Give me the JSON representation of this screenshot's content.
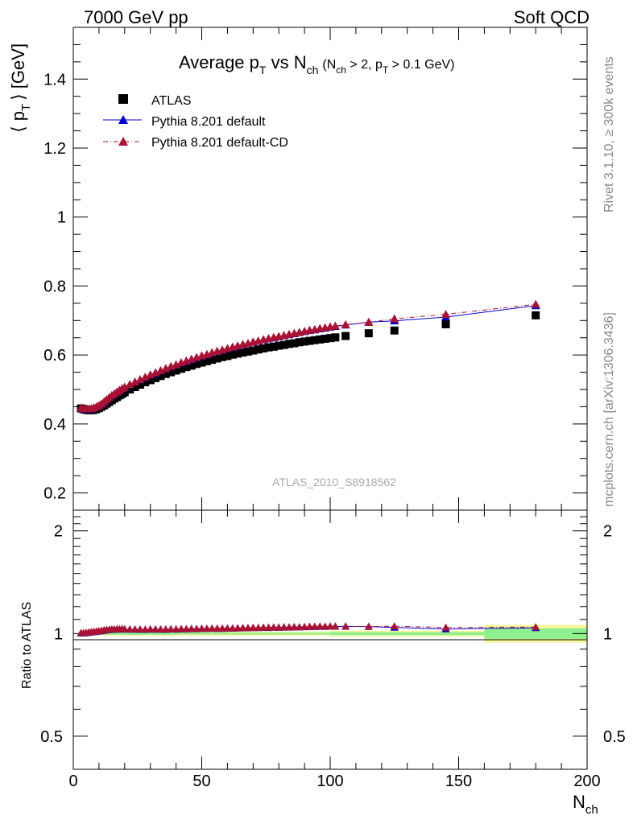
{
  "header": {
    "energy_label": "7000 GeV pp",
    "process_label": "Soft QCD"
  },
  "side_labels": {
    "rivet": "Rivet 3.1.10, ≥ 300k events",
    "source": "mcplots.cern.ch [arXiv:1306.3436]"
  },
  "chart_data": {
    "type": "scatter",
    "title": "Average p_T vs N_ch (N_ch > 2, p_T > 0.1 GeV)",
    "title_parts": {
      "a": "Average p",
      "a_sub": "T",
      "b": " vs N",
      "b_sub": "ch",
      "c": "(N",
      "c_sub": "ch",
      "d": " > 2, p",
      "d_sub": "T",
      "e": " > 0.1 GeV)"
    },
    "watermark": "ATLAS_2010_S8918562",
    "xlabel": "N_ch",
    "xlabel_parts": {
      "main": "N",
      "sub": "ch"
    },
    "ylabel": "⟨ p_T ⟩ [GeV]",
    "ylabel_parts": {
      "open": "⟨ p",
      "sub": "T",
      "close": "⟩ [GeV]"
    },
    "ratio_ylabel": "Ratio to ATLAS",
    "xlim": [
      0,
      200
    ],
    "ylim": [
      0.15,
      1.55
    ],
    "ratio_ylim": [
      0.4,
      2.3
    ],
    "log_ratio_axis": true,
    "x_ticks": [
      "0",
      "50",
      "100",
      "150",
      "200"
    ],
    "y_ticks": [
      "0.2",
      "0.4",
      "0.6",
      "0.8",
      "1",
      "1.2",
      "1.4"
    ],
    "ratio_ticks": [
      "0.5",
      "1",
      "2"
    ],
    "legend_position": "top-left",
    "colors": {
      "data": "#000000",
      "default": "#0000cc",
      "cd": "#aa1133",
      "band_inner": "#8ef08e",
      "band_outer": "#f6f69a"
    },
    "x": [
      3,
      4,
      5,
      6,
      7,
      8,
      9,
      10,
      11,
      12,
      13,
      14,
      15,
      16,
      17,
      18,
      19,
      20,
      22,
      24,
      26,
      28,
      30,
      32,
      34,
      36,
      38,
      40,
      42,
      44,
      46,
      48,
      50,
      52,
      54,
      56,
      58,
      60,
      62,
      64,
      66,
      68,
      70,
      72,
      74,
      76,
      78,
      80,
      82,
      84,
      86,
      88,
      90,
      92,
      94,
      96,
      98,
      100,
      102,
      106,
      115,
      125,
      145,
      180
    ],
    "series": [
      {
        "name": "ATLAS",
        "marker": "square",
        "values": [
          0.445,
          0.443,
          0.441,
          0.44,
          0.44,
          0.441,
          0.443,
          0.446,
          0.45,
          0.454,
          0.459,
          0.464,
          0.469,
          0.474,
          0.478,
          0.483,
          0.487,
          0.492,
          0.5,
          0.507,
          0.514,
          0.521,
          0.527,
          0.533,
          0.539,
          0.545,
          0.55,
          0.555,
          0.56,
          0.565,
          0.569,
          0.574,
          0.578,
          0.582,
          0.586,
          0.59,
          0.594,
          0.597,
          0.601,
          0.604,
          0.607,
          0.61,
          0.613,
          0.616,
          0.619,
          0.622,
          0.624,
          0.627,
          0.629,
          0.632,
          0.634,
          0.637,
          0.639,
          0.641,
          0.643,
          0.645,
          0.647,
          0.649,
          0.651,
          0.655,
          0.663,
          0.671,
          0.689,
          0.715
        ]
      },
      {
        "name": "Pythia 8.201 default",
        "marker": "triangle",
        "line": "solid",
        "values": [
          0.446,
          0.444,
          0.443,
          0.443,
          0.444,
          0.446,
          0.449,
          0.453,
          0.458,
          0.464,
          0.47,
          0.476,
          0.482,
          0.487,
          0.492,
          0.497,
          0.502,
          0.506,
          0.514,
          0.521,
          0.528,
          0.535,
          0.542,
          0.548,
          0.554,
          0.56,
          0.566,
          0.571,
          0.577,
          0.582,
          0.587,
          0.592,
          0.597,
          0.601,
          0.606,
          0.61,
          0.614,
          0.618,
          0.622,
          0.626,
          0.63,
          0.633,
          0.637,
          0.64,
          0.644,
          0.647,
          0.65,
          0.653,
          0.656,
          0.659,
          0.662,
          0.665,
          0.668,
          0.671,
          0.673,
          0.676,
          0.678,
          0.681,
          0.683,
          0.687,
          0.695,
          0.699,
          0.71,
          0.743
        ]
      },
      {
        "name": "Pythia 8.201 default-CD",
        "marker": "triangle",
        "line": "dash-dot",
        "values": [
          0.447,
          0.445,
          0.444,
          0.444,
          0.445,
          0.447,
          0.45,
          0.454,
          0.459,
          0.465,
          0.471,
          0.477,
          0.483,
          0.488,
          0.493,
          0.498,
          0.503,
          0.507,
          0.515,
          0.522,
          0.529,
          0.536,
          0.543,
          0.549,
          0.555,
          0.561,
          0.567,
          0.572,
          0.578,
          0.583,
          0.588,
          0.593,
          0.598,
          0.602,
          0.607,
          0.611,
          0.615,
          0.619,
          0.623,
          0.627,
          0.631,
          0.634,
          0.638,
          0.641,
          0.645,
          0.648,
          0.651,
          0.654,
          0.657,
          0.66,
          0.663,
          0.666,
          0.669,
          0.672,
          0.674,
          0.677,
          0.679,
          0.682,
          0.684,
          0.688,
          0.695,
          0.705,
          0.718,
          0.747
        ]
      }
    ],
    "ratio_band": {
      "x_edges": [
        2,
        12,
        40,
        100,
        160,
        200
      ],
      "inner_halfwidth": [
        0.006,
        0.008,
        0.006,
        0.01,
        0.035
      ],
      "outer_halfwidth": [
        0.012,
        0.016,
        0.014,
        0.02,
        0.06
      ]
    }
  }
}
